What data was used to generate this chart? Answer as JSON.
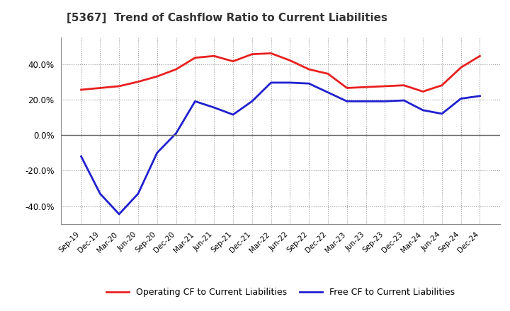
{
  "title": "[5367]  Trend of Cashflow Ratio to Current Liabilities",
  "x_labels": [
    "Sep-19",
    "Dec-19",
    "Mar-20",
    "Jun-20",
    "Sep-20",
    "Dec-20",
    "Mar-21",
    "Jun-21",
    "Sep-21",
    "Dec-21",
    "Mar-22",
    "Jun-22",
    "Sep-22",
    "Dec-22",
    "Mar-23",
    "Jun-23",
    "Sep-23",
    "Dec-23",
    "Mar-24",
    "Jun-24",
    "Sep-24",
    "Dec-24"
  ],
  "operating_cf": [
    25.5,
    26.5,
    27.5,
    30.0,
    33.0,
    37.0,
    43.5,
    44.5,
    41.5,
    45.5,
    46.0,
    42.0,
    37.0,
    34.5,
    26.5,
    27.0,
    27.5,
    28.0,
    24.5,
    28.0,
    38.0,
    44.5
  ],
  "free_cf": [
    -12.0,
    -33.0,
    -44.5,
    -33.0,
    -10.0,
    1.0,
    19.0,
    15.5,
    11.5,
    19.0,
    29.5,
    29.5,
    29.0,
    24.0,
    19.0,
    19.0,
    19.0,
    19.5,
    14.0,
    12.0,
    20.5,
    22.0
  ],
  "operating_color": "#e82020",
  "free_color": "#2020d0",
  "ylim": [
    -50,
    55
  ],
  "yticks": [
    -40.0,
    -20.0,
    0.0,
    20.0,
    40.0
  ],
  "background_color": "#ffffff",
  "plot_bg_color": "#ffffff",
  "grid_color": "#999999",
  "legend_operating": "Operating CF to Current Liabilities",
  "legend_free": "Free CF to Current Liabilities"
}
